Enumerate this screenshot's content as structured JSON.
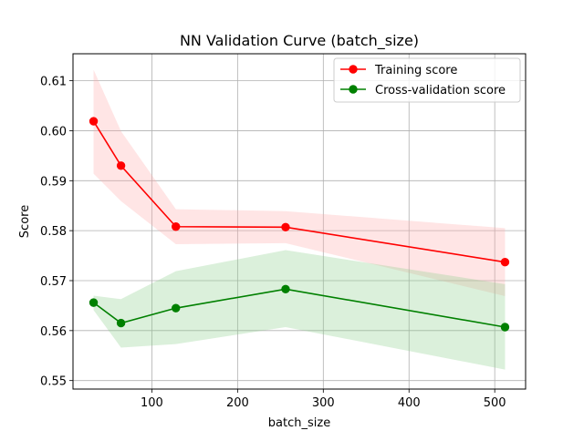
{
  "chart_data": {
    "type": "line",
    "title": "NN Validation Curve (batch_size)",
    "xlabel": "batch_size",
    "ylabel": "Score",
    "x": [
      32,
      64,
      128,
      256,
      512
    ],
    "xlim": [
      8,
      536
    ],
    "ylim": [
      0.5483,
      0.6154
    ],
    "xticks": [
      100,
      200,
      300,
      400,
      500
    ],
    "yticks": [
      0.55,
      0.56,
      0.57,
      0.58,
      0.59,
      0.6,
      0.61
    ],
    "ytick_labels": [
      "0.55",
      "0.56",
      "0.57",
      "0.58",
      "0.59",
      "0.60",
      "0.61"
    ],
    "grid": true,
    "legend_position": "top-right",
    "series": [
      {
        "name": "Training score",
        "color": "#ff0000",
        "fill_color": "#ffaaaa",
        "values": [
          0.6019,
          0.593,
          0.5808,
          0.5807,
          0.5737
        ],
        "upper": [
          0.6122,
          0.5999,
          0.5843,
          0.5839,
          0.5805
        ],
        "lower": [
          0.5914,
          0.5859,
          0.5773,
          0.5775,
          0.5669
        ]
      },
      {
        "name": "Cross-validation score",
        "color": "#008000",
        "fill_color": "#88cc88",
        "values": [
          0.5656,
          0.5615,
          0.5645,
          0.5683,
          0.5607
        ],
        "upper": [
          0.567,
          0.5663,
          0.5719,
          0.5761,
          0.5693
        ],
        "lower": [
          0.5641,
          0.5566,
          0.5573,
          0.5607,
          0.5522
        ]
      }
    ]
  }
}
